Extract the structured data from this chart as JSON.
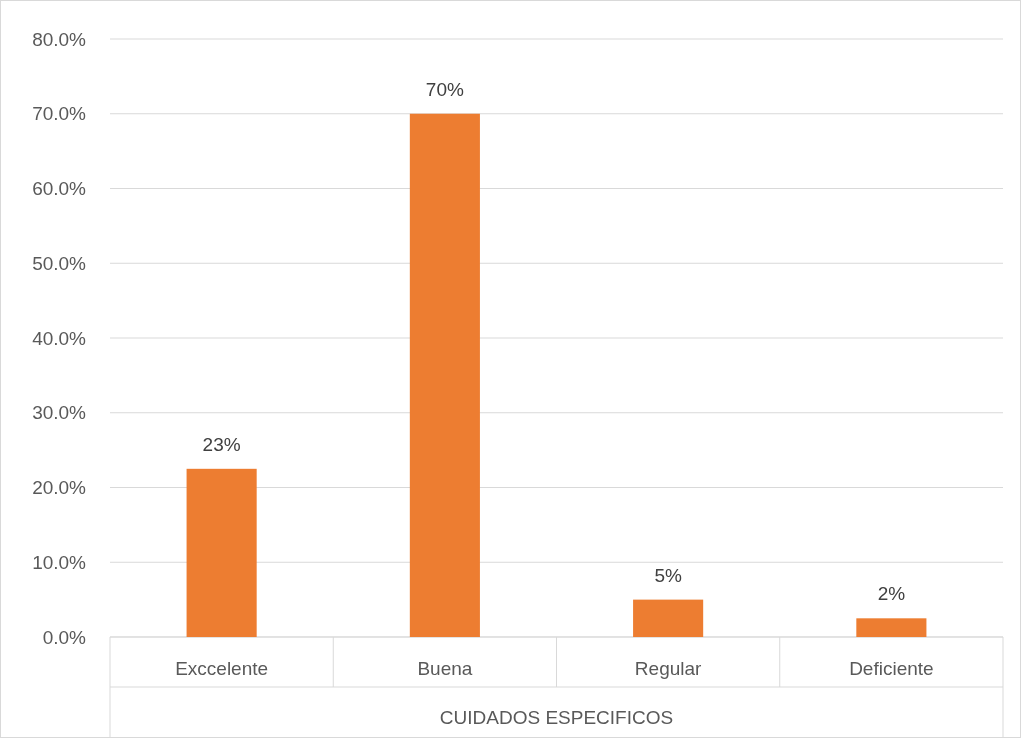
{
  "chart_data": {
    "type": "bar",
    "xlabel": "CUIDADOS ESPECIFICOS",
    "categories": [
      "Exccelente",
      "Buena",
      "Regular",
      "Deficiente"
    ],
    "series": [
      {
        "color": "#ed7d31",
        "values": [
          22.5,
          70,
          5,
          2.5
        ],
        "value_labels": [
          "23%",
          "70%",
          "5%",
          "2%"
        ]
      }
    ],
    "ylim": [
      0,
      80
    ],
    "yticks": [
      {
        "value": 0,
        "label": "0.0%"
      },
      {
        "value": 10,
        "label": "10.0%"
      },
      {
        "value": 20,
        "label": "20.0%"
      },
      {
        "value": 30,
        "label": "30.0%"
      },
      {
        "value": 40,
        "label": "40.0%"
      },
      {
        "value": 50,
        "label": "50.0%"
      },
      {
        "value": 60,
        "label": "60.0%"
      },
      {
        "value": 70,
        "label": "70.0%"
      },
      {
        "value": 80,
        "label": "80.0%"
      }
    ],
    "grid": "y"
  }
}
